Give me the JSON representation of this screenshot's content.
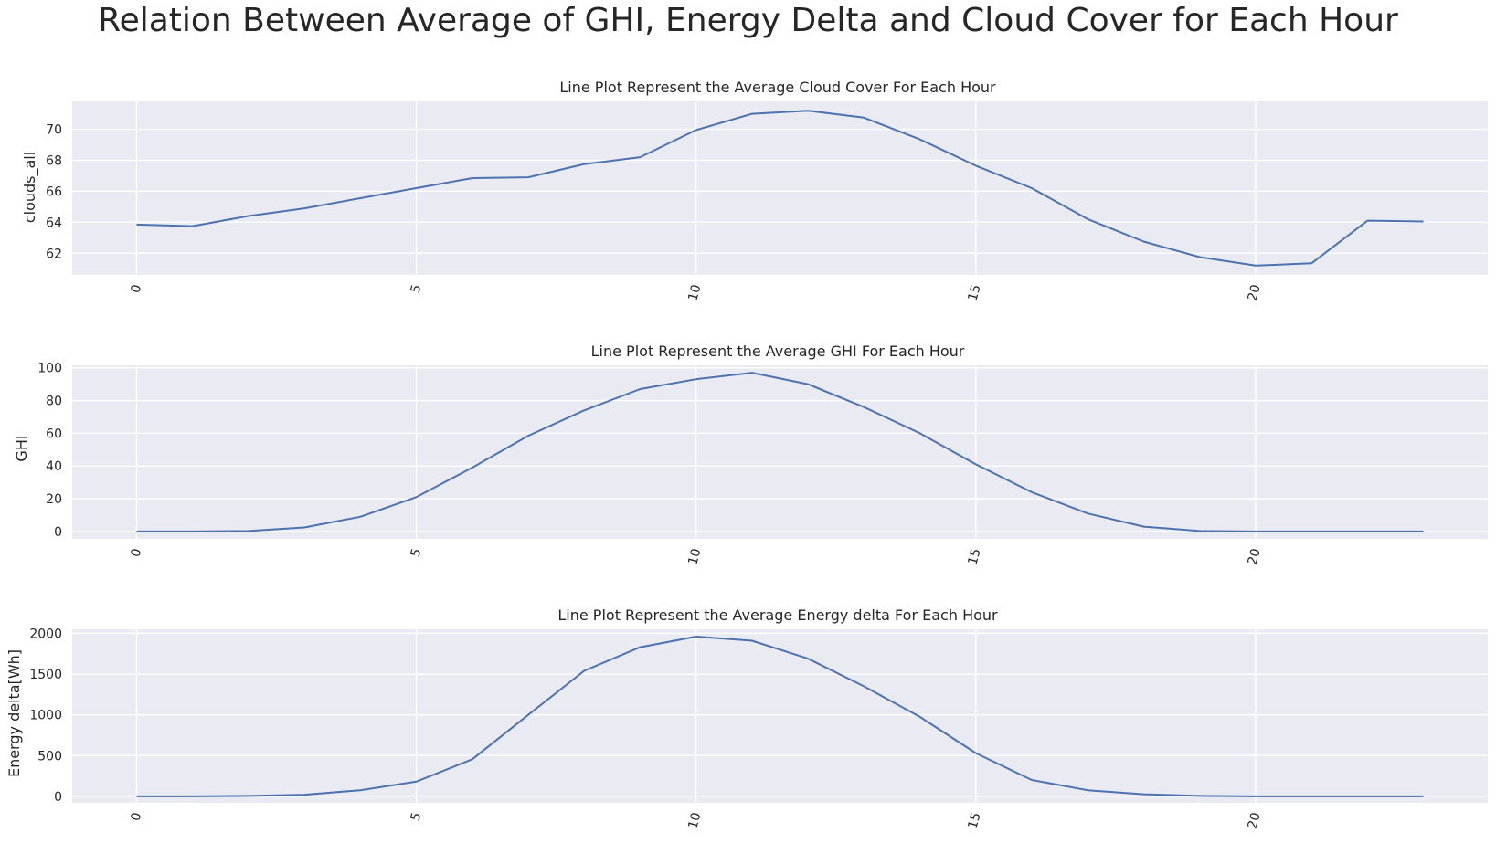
{
  "figure_title": "Relation Between Average of GHI, Energy Delta and Cloud Cover for Each Hour",
  "colors": {
    "line": "#4c72b0",
    "panel_background": "#eaeaf2",
    "grid": "#ffffff"
  },
  "chart_data": [
    {
      "type": "line",
      "title": "Line Plot Represent the Average Cloud Cover For Each Hour",
      "xlabel": "",
      "ylabel": "clouds_all",
      "x": [
        0,
        1,
        2,
        3,
        4,
        5,
        6,
        7,
        8,
        9,
        10,
        11,
        12,
        13,
        14,
        15,
        16,
        17,
        18,
        19,
        20,
        21,
        22,
        23
      ],
      "y": [
        63.85,
        63.75,
        64.4,
        64.9,
        65.55,
        66.2,
        66.85,
        66.9,
        67.75,
        68.2,
        69.95,
        71.0,
        71.2,
        70.75,
        69.35,
        67.65,
        66.2,
        64.2,
        62.75,
        61.75,
        61.2,
        61.35,
        64.1,
        64.05
      ],
      "xticks": [
        0,
        5,
        10,
        15,
        20
      ],
      "yticks": [
        62,
        64,
        66,
        68,
        70
      ],
      "xlim": [
        -1.15,
        24.15
      ],
      "ylim": [
        60.6,
        71.8
      ],
      "grid": true
    },
    {
      "type": "line",
      "title": "Line Plot Represent the Average GHI For Each Hour",
      "xlabel": "",
      "ylabel": "GHI",
      "x": [
        0,
        1,
        2,
        3,
        4,
        5,
        6,
        7,
        8,
        9,
        10,
        11,
        12,
        13,
        14,
        15,
        16,
        17,
        18,
        19,
        20,
        21,
        22,
        23
      ],
      "y": [
        0,
        0,
        0.3,
        2.5,
        9,
        21,
        39,
        58.5,
        74,
        87,
        93,
        97,
        90,
        76,
        60,
        41,
        24,
        11,
        3,
        0.3,
        0,
        0,
        0,
        0
      ],
      "xticks": [
        0,
        5,
        10,
        15,
        20
      ],
      "yticks": [
        0,
        20,
        40,
        60,
        80,
        100
      ],
      "xlim": [
        -1.15,
        24.15
      ],
      "ylim": [
        -4.5,
        101.5
      ],
      "grid": true
    },
    {
      "type": "line",
      "title": "Line Plot Represent the Average Energy delta For Each Hour",
      "xlabel": "",
      "ylabel": "Energy delta[Wh]",
      "x": [
        0,
        1,
        2,
        3,
        4,
        5,
        6,
        7,
        8,
        9,
        10,
        11,
        12,
        13,
        14,
        15,
        16,
        17,
        18,
        19,
        20,
        21,
        22,
        23
      ],
      "y": [
        0,
        0,
        5,
        20,
        75,
        180,
        455,
        1000,
        1540,
        1830,
        1960,
        1910,
        1690,
        1350,
        975,
        530,
        200,
        75,
        25,
        5,
        0,
        0,
        0,
        0
      ],
      "xticks": [
        0,
        5,
        10,
        15,
        20
      ],
      "yticks": [
        0,
        500,
        1000,
        1500,
        2000
      ],
      "xlim": [
        -1.15,
        24.15
      ],
      "ylim": [
        -80,
        2050
      ],
      "grid": true
    }
  ]
}
